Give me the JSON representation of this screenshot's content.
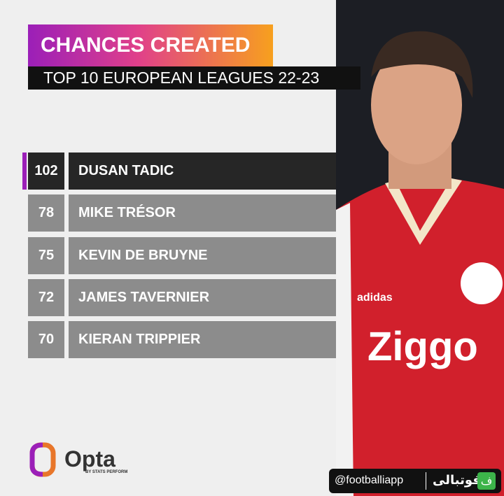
{
  "header": {
    "title": "CHANCES CREATED",
    "subtitle": "TOP 10 EUROPEAN LEAGUES 22-23"
  },
  "table": {
    "rows": [
      {
        "value": 102,
        "name": "DUSAN TADIC"
      },
      {
        "value": 78,
        "name": "MIKE TRÉSOR"
      },
      {
        "value": 75,
        "name": "KEVIN DE BRUYNE"
      },
      {
        "value": 72,
        "name": "JAMES TAVERNIER"
      },
      {
        "value": 70,
        "name": "KIERAN TRIPPIER"
      }
    ]
  },
  "branding": {
    "logo": "Opta",
    "tagline": "BY STATS PERFORM"
  },
  "watermark": {
    "handle": "@footballiapp",
    "brand": "فوتبالی",
    "icon": "ف"
  }
}
